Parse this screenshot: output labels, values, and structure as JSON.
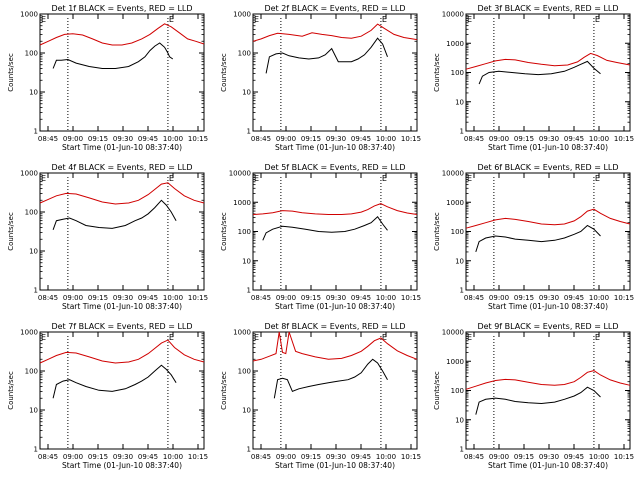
{
  "chart_data": [
    {
      "type": "line",
      "title": "Det 1f BLACK = Events, RED = LLD",
      "xlabel": "Start Time (01-Jun-10 08:37:40)",
      "ylabel": "Counts/sec",
      "yscale": "log",
      "ylim": [
        1,
        1000
      ],
      "ytick_labels": [
        "1",
        "10",
        "100",
        "1000"
      ],
      "xtick_labels": [
        "08:45",
        "09:00",
        "09:15",
        "09:30",
        "09:45",
        "10:00",
        "10:15"
      ],
      "markers": [
        "E",
        "E"
      ],
      "series": [
        {
          "color": "#000000",
          "x": [
            0.08,
            0.1,
            0.13,
            0.17,
            0.22,
            0.3,
            0.38,
            0.46,
            0.54,
            0.6,
            0.64,
            0.67,
            0.7,
            0.73,
            0.76,
            0.78,
            0.79,
            0.81
          ],
          "y": [
            40,
            65,
            65,
            68,
            55,
            45,
            40,
            40,
            45,
            60,
            80,
            115,
            150,
            180,
            140,
            100,
            80,
            70
          ]
        },
        {
          "color": "#d00000",
          "x": [
            0.0,
            0.05,
            0.1,
            0.15,
            0.2,
            0.26,
            0.32,
            0.38,
            0.44,
            0.5,
            0.56,
            0.62,
            0.67,
            0.72,
            0.76,
            0.8,
            0.85,
            0.9,
            0.95,
            1.0
          ],
          "y": [
            160,
            200,
            250,
            300,
            310,
            290,
            230,
            180,
            160,
            160,
            180,
            230,
            300,
            430,
            560,
            470,
            330,
            230,
            200,
            170
          ]
        }
      ]
    },
    {
      "type": "line",
      "title": "Det 2f BLACK = Events, RED = LLD",
      "xlabel": "Start Time (01-Jun-10 08:37:40)",
      "ylabel": "Counts/sec",
      "yscale": "log",
      "ylim": [
        1,
        1000
      ],
      "ytick_labels": [
        "1",
        "10",
        "100",
        "1000"
      ],
      "xtick_labels": [
        "08:45",
        "09:00",
        "09:15",
        "09:30",
        "09:45",
        "10:00",
        "10:15"
      ],
      "markers": [
        "E",
        "E"
      ],
      "series": [
        {
          "color": "#000000",
          "x": [
            0.08,
            0.1,
            0.14,
            0.18,
            0.22,
            0.28,
            0.34,
            0.4,
            0.44,
            0.48,
            0.52,
            0.56,
            0.6,
            0.64,
            0.68,
            0.72,
            0.76,
            0.79,
            0.82
          ],
          "y": [
            30,
            80,
            95,
            100,
            85,
            75,
            70,
            75,
            90,
            130,
            60,
            60,
            60,
            70,
            90,
            140,
            240,
            170,
            80
          ]
        },
        {
          "color": "#d00000",
          "x": [
            0.0,
            0.05,
            0.1,
            0.15,
            0.22,
            0.3,
            0.36,
            0.42,
            0.48,
            0.54,
            0.6,
            0.66,
            0.72,
            0.76,
            0.8,
            0.86,
            0.92,
            1.0
          ],
          "y": [
            200,
            230,
            280,
            320,
            300,
            270,
            330,
            300,
            280,
            250,
            240,
            270,
            380,
            550,
            430,
            300,
            250,
            220
          ]
        }
      ]
    },
    {
      "type": "line",
      "title": "Det 3f BLACK = Events, RED = LLD",
      "xlabel": "Start Time (01-Jun-10 08:37:40)",
      "ylabel": "Counts/sec",
      "yscale": "log",
      "ylim": [
        1,
        10000
      ],
      "ytick_labels": [
        "1",
        "10",
        "100",
        "1000",
        "10000"
      ],
      "xtick_labels": [
        "08:45",
        "09:00",
        "09:15",
        "09:30",
        "09:45",
        "10:00",
        "10:15"
      ],
      "markers": [
        "E",
        "E"
      ],
      "series": [
        {
          "color": "#000000",
          "x": [
            0.08,
            0.1,
            0.14,
            0.2,
            0.28,
            0.36,
            0.44,
            0.52,
            0.6,
            0.66,
            0.7,
            0.74,
            0.78,
            0.82
          ],
          "y": [
            40,
            75,
            100,
            110,
            100,
            90,
            85,
            90,
            110,
            150,
            190,
            240,
            140,
            90
          ]
        },
        {
          "color": "#d00000",
          "x": [
            0.0,
            0.06,
            0.12,
            0.18,
            0.24,
            0.3,
            0.38,
            0.46,
            0.54,
            0.62,
            0.68,
            0.72,
            0.76,
            0.8,
            0.86,
            0.92,
            1.0
          ],
          "y": [
            130,
            160,
            200,
            250,
            280,
            270,
            220,
            190,
            170,
            180,
            230,
            330,
            450,
            380,
            260,
            220,
            180
          ]
        }
      ]
    },
    {
      "type": "line",
      "title": "Det 4f BLACK = Events, RED = LLD",
      "xlabel": "Start Time (01-Jun-10 08:37:40)",
      "ylabel": "Counts/sec",
      "yscale": "log",
      "ylim": [
        1,
        1000
      ],
      "ytick_labels": [
        "1",
        "10",
        "100",
        "1000"
      ],
      "xtick_labels": [
        "08:45",
        "09:00",
        "09:15",
        "09:30",
        "09:45",
        "10:00",
        "10:15"
      ],
      "markers": [
        "E",
        "E"
      ],
      "series": [
        {
          "color": "#000000",
          "x": [
            0.08,
            0.1,
            0.14,
            0.18,
            0.22,
            0.28,
            0.36,
            0.44,
            0.52,
            0.58,
            0.62,
            0.66,
            0.7,
            0.74,
            0.77,
            0.8,
            0.83
          ],
          "y": [
            35,
            60,
            65,
            70,
            60,
            45,
            40,
            38,
            45,
            60,
            70,
            90,
            130,
            200,
            150,
            100,
            60
          ]
        },
        {
          "color": "#d00000",
          "x": [
            0.0,
            0.05,
            0.1,
            0.16,
            0.22,
            0.3,
            0.38,
            0.46,
            0.54,
            0.6,
            0.66,
            0.7,
            0.74,
            0.78,
            0.82,
            0.88,
            0.94,
            1.0
          ],
          "y": [
            170,
            210,
            260,
            300,
            290,
            230,
            180,
            160,
            170,
            200,
            280,
            380,
            520,
            560,
            400,
            260,
            200,
            170
          ]
        }
      ]
    },
    {
      "type": "line",
      "title": "Det 5f BLACK = Events, RED = LLD",
      "xlabel": "Start Time (01-Jun-10 08:37:40)",
      "ylabel": "Counts/sec",
      "yscale": "log",
      "ylim": [
        1,
        10000
      ],
      "ytick_labels": [
        "1",
        "10",
        "100",
        "1000",
        "10000"
      ],
      "xtick_labels": [
        "08:45",
        "09:00",
        "09:15",
        "09:30",
        "09:45",
        "10:00",
        "10:15"
      ],
      "markers": [
        "E",
        "E"
      ],
      "series": [
        {
          "color": "#000000",
          "x": [
            0.06,
            0.08,
            0.12,
            0.18,
            0.24,
            0.32,
            0.4,
            0.48,
            0.56,
            0.62,
            0.68,
            0.72,
            0.76,
            0.79,
            0.82
          ],
          "y": [
            50,
            90,
            120,
            150,
            140,
            120,
            100,
            95,
            100,
            120,
            160,
            200,
            320,
            180,
            110
          ]
        },
        {
          "color": "#d00000",
          "x": [
            0.0,
            0.06,
            0.12,
            0.18,
            0.24,
            0.3,
            0.38,
            0.46,
            0.54,
            0.6,
            0.66,
            0.7,
            0.74,
            0.78,
            0.82,
            0.88,
            0.94,
            1.0
          ],
          "y": [
            380,
            400,
            440,
            520,
            500,
            440,
            400,
            380,
            380,
            400,
            460,
            560,
            750,
            900,
            700,
            520,
            430,
            380
          ]
        }
      ]
    },
    {
      "type": "line",
      "title": "Det 6f BLACK = Events, RED = LLD",
      "xlabel": "Start Time (01-Jun-10 08:37:40)",
      "ylabel": "Counts/sec",
      "yscale": "log",
      "ylim": [
        1,
        10000
      ],
      "ytick_labels": [
        "1",
        "10",
        "100",
        "1000",
        "10000"
      ],
      "xtick_labels": [
        "08:45",
        "09:00",
        "09:15",
        "09:30",
        "09:45",
        "10:00",
        "10:15"
      ],
      "markers": [
        "E",
        "E"
      ],
      "series": [
        {
          "color": "#000000",
          "x": [
            0.06,
            0.08,
            0.12,
            0.18,
            0.24,
            0.3,
            0.38,
            0.46,
            0.54,
            0.6,
            0.66,
            0.7,
            0.74,
            0.78,
            0.82
          ],
          "y": [
            20,
            45,
            60,
            70,
            65,
            55,
            50,
            45,
            50,
            60,
            80,
            100,
            160,
            120,
            70
          ]
        },
        {
          "color": "#d00000",
          "x": [
            0.0,
            0.06,
            0.12,
            0.18,
            0.24,
            0.3,
            0.38,
            0.46,
            0.54,
            0.6,
            0.66,
            0.7,
            0.74,
            0.78,
            0.82,
            0.88,
            0.94,
            1.0
          ],
          "y": [
            130,
            160,
            200,
            250,
            280,
            260,
            220,
            180,
            170,
            180,
            230,
            320,
            500,
            580,
            420,
            280,
            220,
            180
          ]
        }
      ]
    },
    {
      "type": "line",
      "title": "Det 7f BLACK = Events, RED = LLD",
      "xlabel": "Start Time (01-Jun-10 08:37:40)",
      "ylabel": "Counts/sec",
      "yscale": "log",
      "ylim": [
        1,
        1000
      ],
      "ytick_labels": [
        "1",
        "10",
        "100",
        "1000"
      ],
      "xtick_labels": [
        "08:45",
        "09:00",
        "09:15",
        "09:30",
        "09:45",
        "10:00",
        "10:15"
      ],
      "markers": [
        "E",
        "E"
      ],
      "series": [
        {
          "color": "#000000",
          "x": [
            0.08,
            0.1,
            0.14,
            0.18,
            0.22,
            0.28,
            0.36,
            0.44,
            0.52,
            0.58,
            0.62,
            0.66,
            0.7,
            0.74,
            0.77,
            0.8,
            0.83
          ],
          "y": [
            20,
            45,
            55,
            60,
            50,
            40,
            32,
            30,
            35,
            45,
            55,
            70,
            100,
            140,
            110,
            80,
            50
          ]
        },
        {
          "color": "#d00000",
          "x": [
            0.0,
            0.05,
            0.1,
            0.16,
            0.22,
            0.3,
            0.38,
            0.46,
            0.54,
            0.6,
            0.66,
            0.7,
            0.74,
            0.78,
            0.82,
            0.88,
            0.94,
            1.0
          ],
          "y": [
            160,
            200,
            250,
            300,
            290,
            230,
            180,
            160,
            170,
            200,
            280,
            380,
            520,
            620,
            400,
            260,
            200,
            170
          ]
        }
      ]
    },
    {
      "type": "line",
      "title": "Det 8f BLACK = Events, RED = LLD",
      "xlabel": "Start Time (01-Jun-10 08:37:40)",
      "ylabel": "Counts/sec",
      "yscale": "log",
      "ylim": [
        1,
        1000
      ],
      "ytick_labels": [
        "1",
        "10",
        "100",
        "1000"
      ],
      "xtick_labels": [
        "08:45",
        "09:00",
        "09:15",
        "09:30",
        "09:45",
        "10:00",
        "10:15"
      ],
      "markers": [
        "E",
        "E"
      ],
      "series": [
        {
          "color": "#000000",
          "x": [
            0.13,
            0.15,
            0.18,
            0.21,
            0.24,
            0.28,
            0.34,
            0.4,
            0.46,
            0.52,
            0.58,
            0.62,
            0.66,
            0.7,
            0.73,
            0.76,
            0.79,
            0.82
          ],
          "y": [
            20,
            60,
            65,
            60,
            30,
            35,
            40,
            45,
            50,
            55,
            60,
            70,
            90,
            150,
            200,
            160,
            100,
            60
          ]
        },
        {
          "color": "#d00000",
          "x": [
            0.0,
            0.05,
            0.1,
            0.14,
            0.16,
            0.18,
            0.2,
            0.22,
            0.26,
            0.3,
            0.38,
            0.46,
            0.54,
            0.6,
            0.66,
            0.7,
            0.74,
            0.78,
            0.82,
            0.88,
            0.94,
            1.0
          ],
          "y": [
            180,
            200,
            240,
            280,
            1000,
            300,
            280,
            1000,
            320,
            280,
            230,
            200,
            210,
            250,
            320,
            430,
            600,
            700,
            500,
            330,
            250,
            200
          ]
        }
      ]
    },
    {
      "type": "line",
      "title": "Det 9f BLACK = Events, RED = LLD",
      "xlabel": "Start Time (01-Jun-10 08:37:40)",
      "ylabel": "Counts/sec",
      "yscale": "log",
      "ylim": [
        1,
        10000
      ],
      "ytick_labels": [
        "1",
        "10",
        "100",
        "1000",
        "10000"
      ],
      "xtick_labels": [
        "08:45",
        "09:00",
        "09:15",
        "09:30",
        "09:45",
        "10:00",
        "10:15"
      ],
      "markers": [
        "E",
        "E"
      ],
      "series": [
        {
          "color": "#000000",
          "x": [
            0.06,
            0.08,
            0.12,
            0.18,
            0.24,
            0.3,
            0.38,
            0.46,
            0.54,
            0.6,
            0.66,
            0.7,
            0.74,
            0.78,
            0.82
          ],
          "y": [
            15,
            40,
            50,
            55,
            50,
            42,
            38,
            36,
            40,
            50,
            65,
            85,
            130,
            100,
            60
          ]
        },
        {
          "color": "#d00000",
          "x": [
            0.0,
            0.06,
            0.12,
            0.18,
            0.24,
            0.3,
            0.38,
            0.46,
            0.54,
            0.6,
            0.66,
            0.7,
            0.74,
            0.78,
            0.82,
            0.88,
            0.94,
            1.0
          ],
          "y": [
            110,
            140,
            180,
            220,
            240,
            230,
            190,
            160,
            150,
            160,
            200,
            280,
            420,
            480,
            340,
            230,
            180,
            150
          ]
        }
      ]
    }
  ]
}
